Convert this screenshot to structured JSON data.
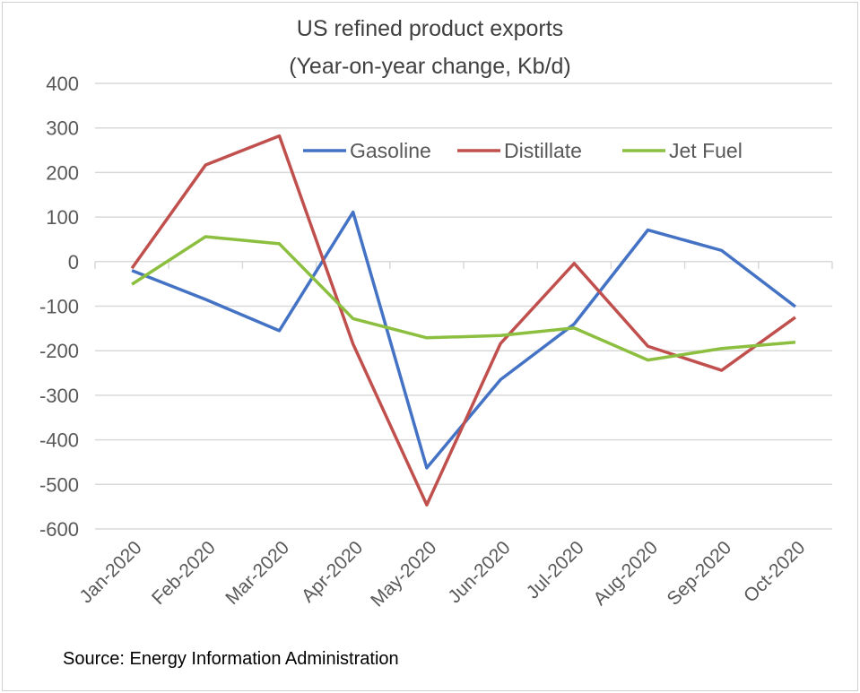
{
  "chart_data": {
    "type": "line",
    "title": "US refined product exports",
    "subtitle": "(Year-on-year change, Kb/d)",
    "xlabel": "",
    "ylabel": "",
    "categories": [
      "Jan-2020",
      "Feb-2020",
      "Mar-2020",
      "Apr-2020",
      "May-2020",
      "Jun-2020",
      "Jul-2020",
      "Aug-2020",
      "Sep-2020",
      "Oct-2020"
    ],
    "ylim": [
      -600,
      400
    ],
    "yticks": [
      400,
      300,
      200,
      100,
      0,
      -100,
      -200,
      -300,
      -400,
      -500,
      -600
    ],
    "grid": true,
    "legend": "top-right",
    "series": [
      {
        "name": "Gasoline",
        "color": "#4472c4",
        "values": [
          -20,
          -85,
          -155,
          111,
          -463,
          -265,
          -140,
          71,
          25,
          -101
        ]
      },
      {
        "name": "Distillate",
        "color": "#c0504d",
        "values": [
          -15,
          217,
          282,
          -185,
          -546,
          -184,
          -4,
          -190,
          -244,
          -125
        ]
      },
      {
        "name": "Jet Fuel",
        "color": "#8cbf3f",
        "values": [
          -51,
          56,
          40,
          -128,
          -171,
          -166,
          -149,
          -221,
          -195,
          -181
        ]
      }
    ]
  },
  "source": "Source: Energy Information Administration"
}
